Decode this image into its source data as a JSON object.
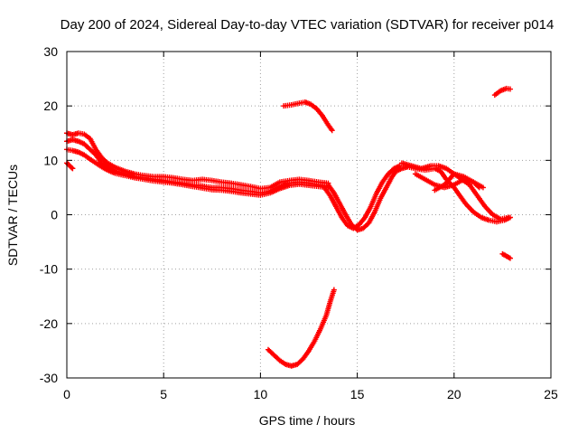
{
  "chart_data": {
    "type": "scatter",
    "title": "Day 200 of 2024, Sidereal Day-to-day VTEC variation (SDTVAR) for receiver p014",
    "xlabel": "GPS time / hours",
    "ylabel": "SDTVAR / TECUs",
    "xlim": [
      0,
      25
    ],
    "ylim": [
      -30,
      30
    ],
    "xticks": [
      0,
      5,
      10,
      15,
      20,
      25
    ],
    "yticks": [
      -30,
      -20,
      -10,
      0,
      10,
      20,
      30
    ],
    "grid": true,
    "marker_color": "#ff0000",
    "series": [
      {
        "name": "track-main-upper",
        "x": [
          0,
          0.3,
          0.6,
          0.9,
          1.2,
          1.5,
          1.8,
          2.1,
          2.5,
          3,
          3.5,
          4,
          4.5,
          5,
          5.5,
          6,
          6.5,
          7,
          7.5,
          8,
          8.5,
          9,
          9.5,
          10,
          10.5,
          11,
          11.5,
          12,
          12.5,
          13,
          13.5
        ],
        "y": [
          15,
          14.7,
          15,
          14.8,
          14,
          12,
          10.5,
          9.5,
          8.7,
          8,
          7.5,
          7.2,
          7,
          7,
          6.8,
          6.5,
          6.3,
          6.5,
          6.3,
          6,
          5.8,
          5.5,
          5.2,
          4.8,
          5,
          6,
          6.3,
          6.5,
          6.3,
          6,
          5.8
        ]
      },
      {
        "name": "track-main-mid",
        "x": [
          0,
          0.3,
          0.6,
          0.9,
          1.2,
          1.5,
          1.8,
          2.1,
          2.5,
          3,
          3.5,
          4,
          4.5,
          5,
          5.5,
          6,
          6.5,
          7,
          7.5,
          8,
          8.5,
          9,
          9.5,
          10,
          10.5,
          11,
          11.5,
          12,
          12.5,
          13,
          13.5
        ],
        "y": [
          13.5,
          13.8,
          13.5,
          13,
          12,
          11,
          9.5,
          8.8,
          8,
          7.5,
          7,
          6.8,
          6.5,
          6.3,
          6,
          5.8,
          5.5,
          5.3,
          5,
          5,
          4.8,
          4.5,
          4.3,
          4,
          4.3,
          5.2,
          5.8,
          6,
          5.8,
          5.5,
          5.2
        ]
      },
      {
        "name": "track-main-lower",
        "x": [
          0,
          0.3,
          0.6,
          0.9,
          1.2,
          1.5,
          1.8,
          2.1,
          2.5,
          3,
          3.5,
          4,
          4.5,
          5,
          5.5,
          6,
          6.5,
          7,
          7.5,
          8,
          8.5,
          9,
          9.5,
          10,
          10.5,
          11,
          11.5,
          12,
          12.5,
          13,
          13.5
        ],
        "y": [
          12,
          11.8,
          11.5,
          11,
          10.2,
          9.5,
          8.8,
          8.2,
          7.6,
          7.2,
          6.8,
          6.5,
          6.2,
          6,
          5.8,
          5.5,
          5.2,
          4.9,
          4.6,
          4.5,
          4.3,
          4,
          3.8,
          3.6,
          4,
          4.8,
          5.4,
          5.6,
          5.4,
          5.2,
          5
        ]
      },
      {
        "name": "track-start-low",
        "x": [
          0,
          0.1,
          0.2,
          0.3
        ],
        "y": [
          9.5,
          9.2,
          8.8,
          8.5
        ]
      },
      {
        "name": "track-dip",
        "x": [
          13.5,
          13.8,
          14.1,
          14.4,
          14.7,
          15,
          15.3,
          15.6,
          15.9,
          16.2,
          16.5,
          16.8,
          17,
          17.3,
          17.6
        ],
        "y": [
          5.5,
          4,
          2,
          0,
          -1.8,
          -2.8,
          -2.5,
          -1.5,
          0.5,
          3,
          5,
          7,
          8,
          8.5,
          8.8
        ]
      },
      {
        "name": "track-dip-offset",
        "x": [
          13.3,
          13.6,
          13.9,
          14.2,
          14.5,
          14.8,
          15.1,
          15.4,
          15.7,
          16,
          16.3,
          16.6,
          16.9,
          17.2
        ],
        "y": [
          5,
          3.5,
          1.5,
          -0.5,
          -2,
          -2.5,
          -1.8,
          -0.5,
          1.5,
          4,
          6,
          7.5,
          8.5,
          9
        ]
      },
      {
        "name": "track-late-a",
        "x": [
          17.6,
          18,
          18.5,
          19,
          19.3,
          19.6,
          20,
          20.3,
          20.6,
          21,
          21.4,
          21.8,
          22.2,
          22.6,
          22.9
        ],
        "y": [
          8.8,
          8.5,
          8.2,
          8.5,
          8,
          6.5,
          5,
          3.5,
          2,
          0.5,
          -0.5,
          -1,
          -1.3,
          -1,
          -0.5
        ]
      },
      {
        "name": "track-late-b",
        "x": [
          17.3,
          17.8,
          18.3,
          18.8,
          19.2,
          19.6,
          20,
          20.4,
          20.8,
          21.2,
          21.6,
          22,
          22.4,
          22.8
        ],
        "y": [
          9.5,
          9,
          8.5,
          9,
          9,
          8.5,
          7.5,
          6.5,
          5.5,
          3.5,
          1.5,
          0,
          -0.8,
          -0.5
        ]
      },
      {
        "name": "track-late-c",
        "x": [
          18,
          18.5,
          19,
          19.5,
          20,
          20.5,
          21,
          21.5
        ],
        "y": [
          7.5,
          6.5,
          5.5,
          5,
          5.5,
          6.5,
          6,
          5
        ]
      },
      {
        "name": "track-late-d",
        "x": [
          19,
          19.5,
          20,
          20.5,
          21,
          21.3
        ],
        "y": [
          4.5,
          5.5,
          7.5,
          7,
          6,
          5
        ]
      },
      {
        "name": "track-high-arc",
        "x": [
          11.2,
          11.6,
          12,
          12.3,
          12.6,
          12.9,
          13.2,
          13.5,
          13.7
        ],
        "y": [
          20,
          20.2,
          20.5,
          20.7,
          20.3,
          19.5,
          18.2,
          16.5,
          15.5
        ]
      },
      {
        "name": "track-low-arc",
        "x": [
          10.4,
          10.7,
          11,
          11.3,
          11.6,
          11.9,
          12.2,
          12.5,
          12.8,
          13.1,
          13.4,
          13.6,
          13.8
        ],
        "y": [
          -24.8,
          -25.8,
          -26.8,
          -27.5,
          -27.8,
          -27.5,
          -26.5,
          -25,
          -23.2,
          -21,
          -18.5,
          -16,
          -13.8
        ]
      },
      {
        "name": "track-top-right",
        "x": [
          22.1,
          22.4,
          22.7,
          22.9
        ],
        "y": [
          22,
          22.8,
          23.2,
          23.1
        ]
      },
      {
        "name": "track-bottom-right",
        "x": [
          22.5,
          22.7,
          22.9
        ],
        "y": [
          -7.2,
          -7.6,
          -8
        ]
      }
    ]
  }
}
